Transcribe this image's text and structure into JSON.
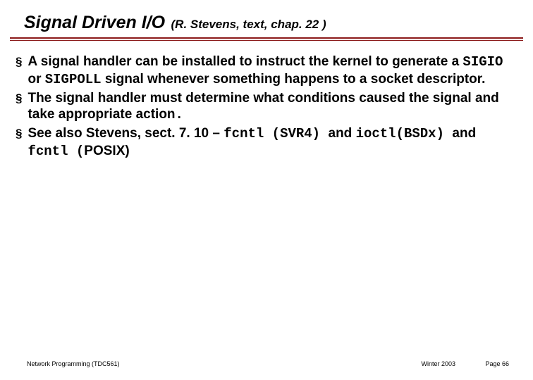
{
  "colors": {
    "hr": "#8b1a1a",
    "text": "#000000",
    "background": "#ffffff"
  },
  "title": {
    "main": "Signal Driven I/O",
    "sub": "(R. Stevens, text, chap. 22 )",
    "main_fontsize": 25,
    "sub_fontsize": 17,
    "font_style": "bold italic"
  },
  "bullets": {
    "marker": "§",
    "items": [
      {
        "segments": [
          {
            "text": "A signal handler can be installed to instruct the kernel to generate a ",
            "mono": false
          },
          {
            "text": "SIGIO",
            "mono": true
          },
          {
            "text": " or ",
            "mono": false
          },
          {
            "text": "SIGPOLL",
            "mono": true
          },
          {
            "text": " signal  whenever something happens to a socket descriptor.",
            "mono": false
          }
        ]
      },
      {
        "segments": [
          {
            "text": "The signal handler must determine what conditions caused the signal and take appropriate action",
            "mono": false
          },
          {
            "text": ".",
            "mono": true
          }
        ]
      },
      {
        "segments": [
          {
            "text": "See also Stevens, sect. 7. 10 – ",
            "mono": false
          },
          {
            "text": "fcntl (SVR4) ",
            "mono": true
          },
          {
            "text": "and ",
            "mono": false
          },
          {
            "text": "ioctl(BSDx) ",
            "mono": true
          },
          {
            "text": "and ",
            "mono": false
          },
          {
            "text": "fcntl (",
            "mono": true
          },
          {
            "text": "POSIX)",
            "mono": false
          }
        ]
      }
    ],
    "fontsize": 19,
    "font_weight": "bold"
  },
  "footer": {
    "left": "Network Programming (TDC561)",
    "center": "Winter  2003",
    "right": "Page 66",
    "fontsize": 9
  }
}
